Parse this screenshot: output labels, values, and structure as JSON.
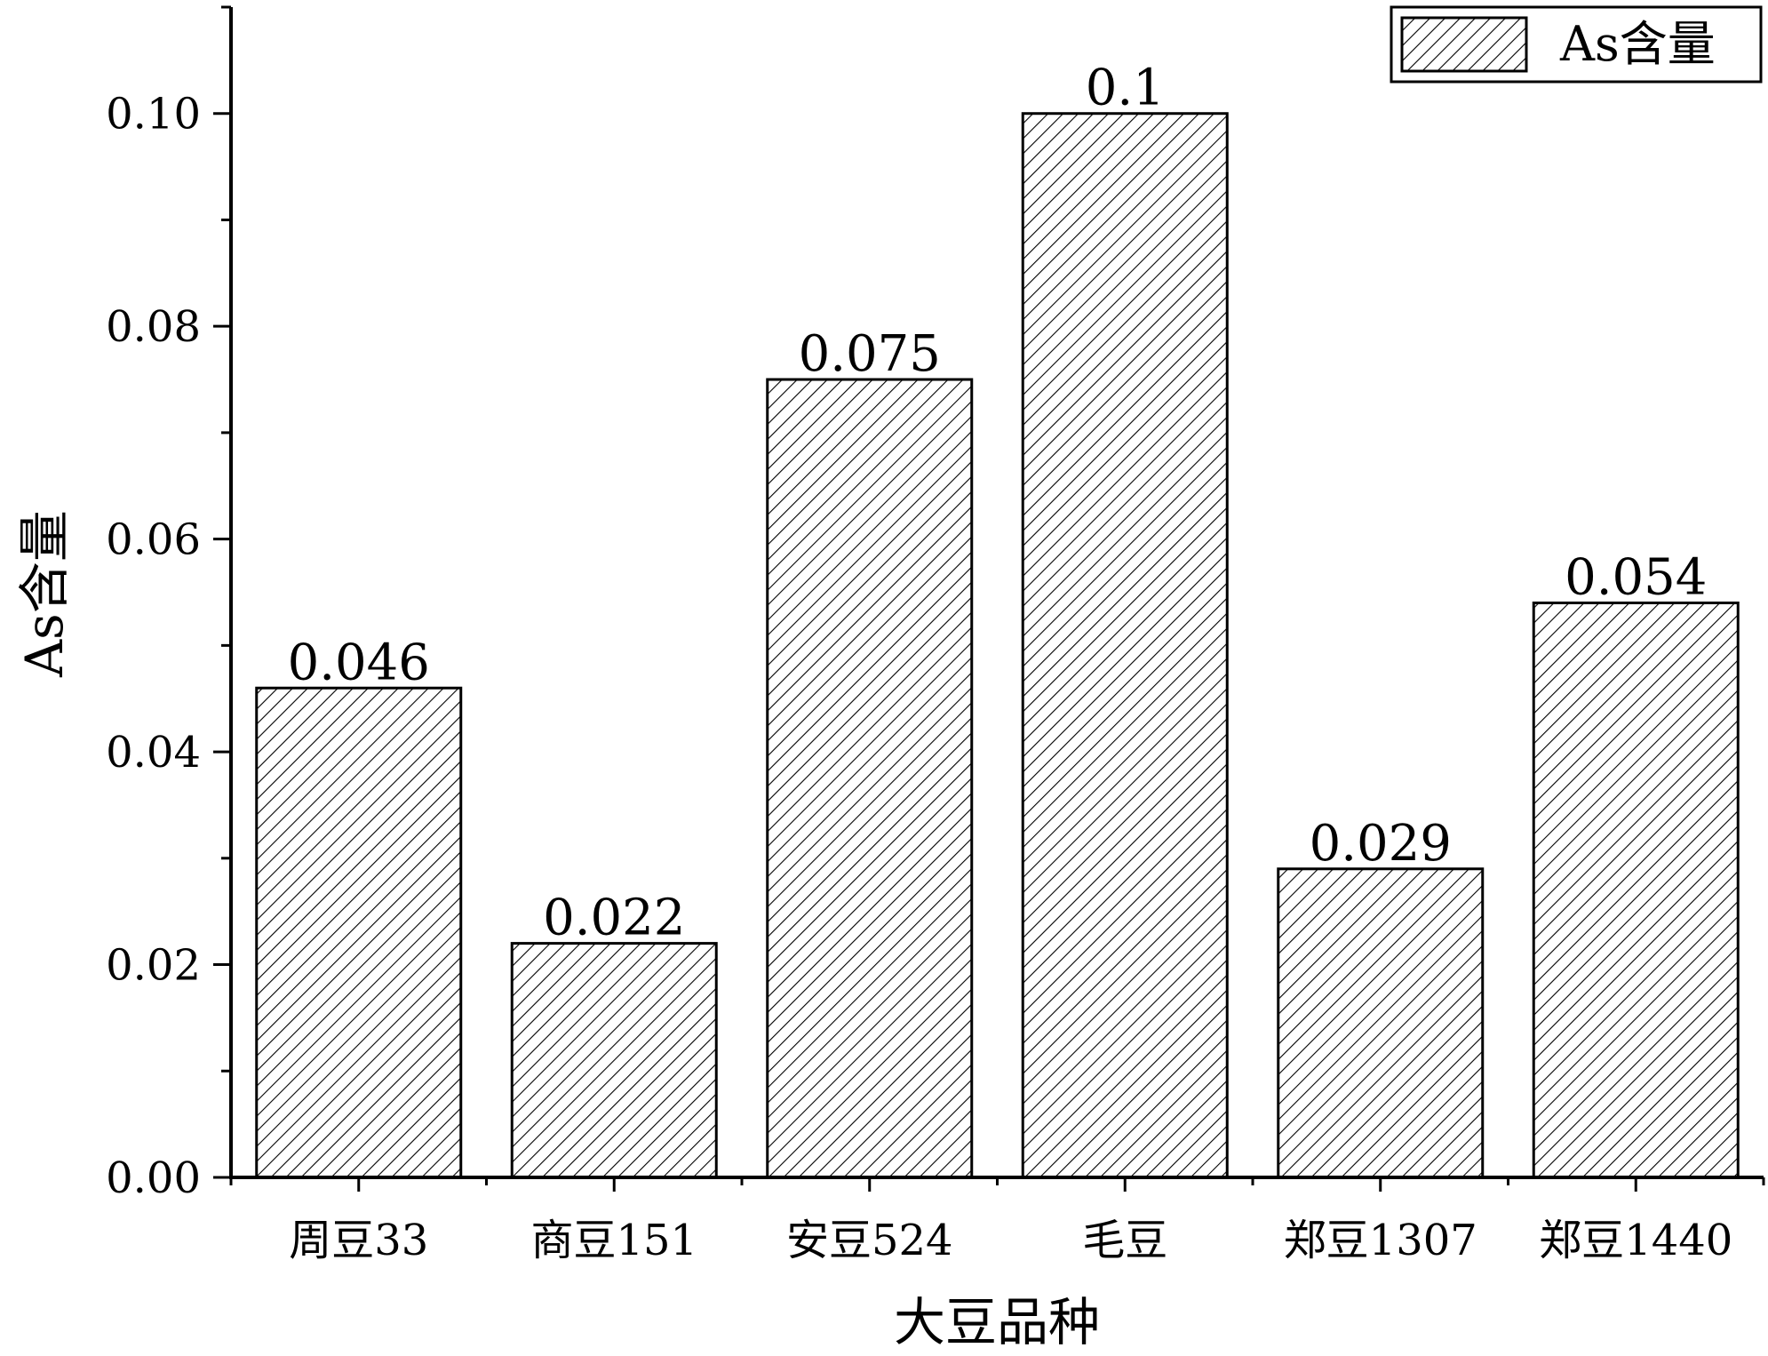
{
  "chart_data": {
    "type": "bar",
    "categories": [
      "周豆33",
      "商豆151",
      "安豆524",
      "毛豆",
      "郑豆1307",
      "郑豆1440"
    ],
    "series": [
      {
        "name": "As含量",
        "values": [
          0.046,
          0.022,
          0.075,
          0.1,
          0.029,
          0.054
        ],
        "value_labels": [
          "0.046",
          "0.022",
          "0.075",
          "0.1",
          "0.029",
          "0.054"
        ]
      }
    ],
    "title": "",
    "xlabel": "大豆品种",
    "ylabel": "As含量",
    "ylim": [
      0,
      0.11
    ],
    "yticks": [
      0.0,
      0.02,
      0.04,
      0.06,
      0.08,
      0.1
    ],
    "ytick_labels": [
      "0.00",
      "0.02",
      "0.04",
      "0.06",
      "0.08",
      "0.10"
    ],
    "grid": false,
    "legend_position": "top-right",
    "bar_fill": "diagonal-hatch",
    "colors": {
      "bar_stroke": "#000000",
      "hatch": "#000000",
      "background": "#ffffff"
    }
  }
}
